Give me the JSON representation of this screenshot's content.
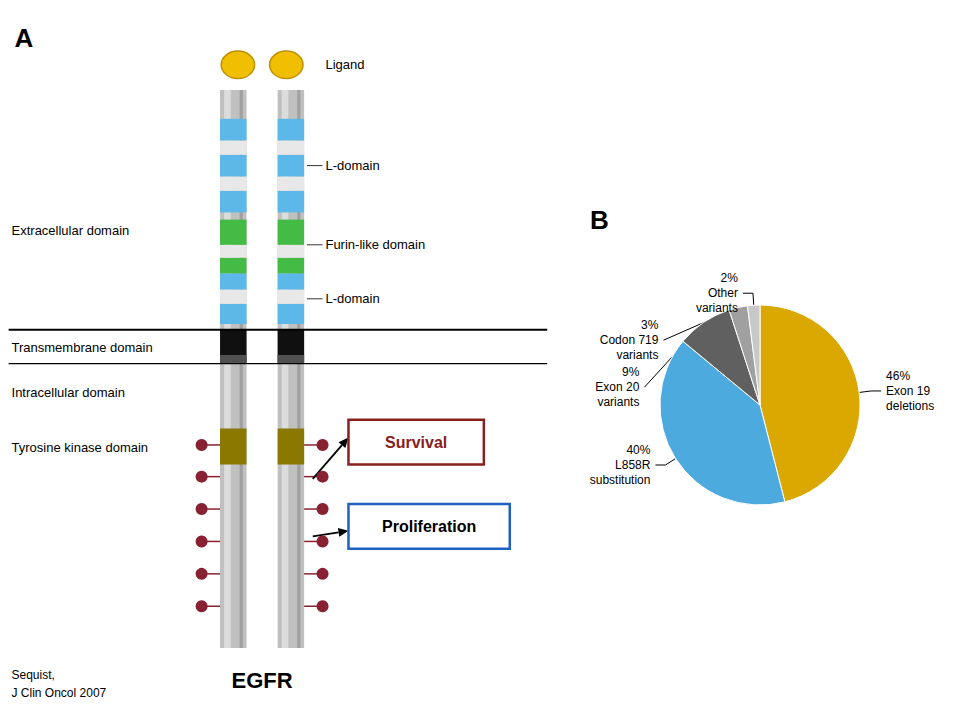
{
  "chart_data": {
    "type": "pie",
    "categories": [
      "Exon 19\ndeletions",
      "L858R\nsubstitution",
      "Exon 20\nvariants",
      "Codon 719\nvariants",
      "Other\nvariants"
    ],
    "values": [
      46,
      40,
      9,
      3,
      2
    ],
    "value_labels": [
      "46%",
      "40%",
      "9%",
      "3%",
      "2%"
    ],
    "colors": [
      "#DAA800",
      "#4DAADF",
      "#606060",
      "#A0A0A0",
      "#C8C8C8"
    ],
    "data_labels": true,
    "legend": false,
    "annotations": [
      "A",
      "B",
      "EGFR",
      "Sequist,\nJ Clin Oncol 2007",
      "Ligand",
      "L-domain",
      "Furin-like domain",
      "L-domain",
      "Extracellular domain",
      "Transmembrane domain",
      "Intracellular domain",
      "Tyrosine kinase domain",
      "Survival",
      "Proliferation"
    ]
  }
}
